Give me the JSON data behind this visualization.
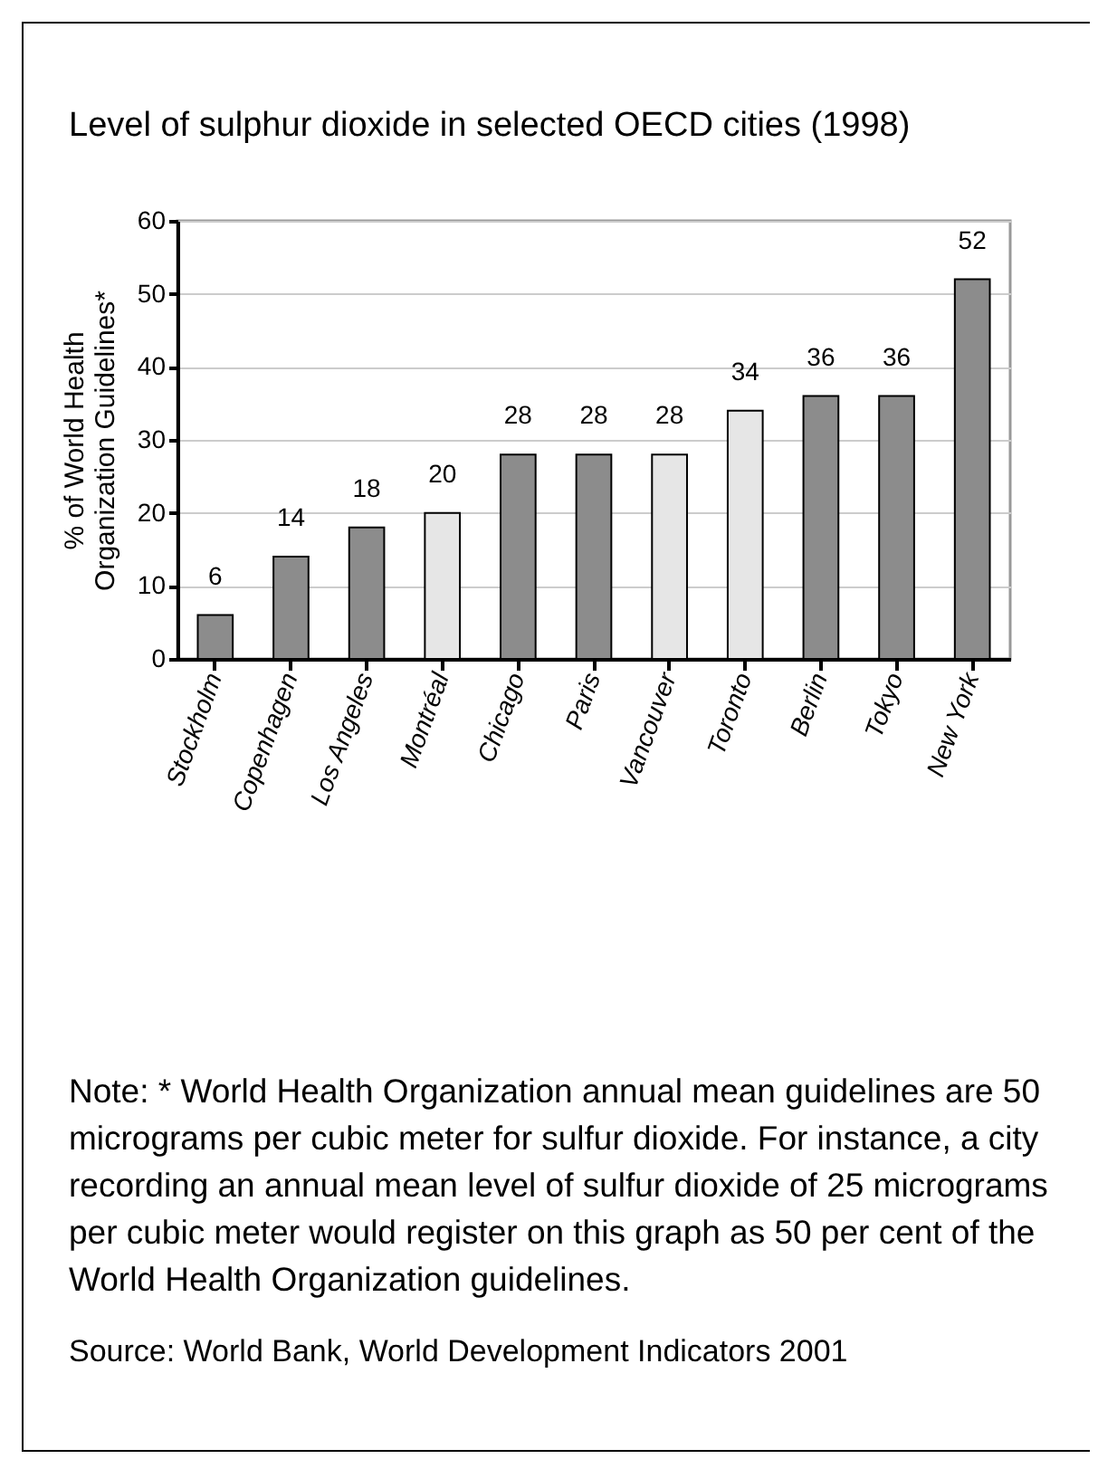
{
  "chart_data": {
    "type": "bar",
    "title": "Level of sulphur dioxide in selected OECD cities (1998)",
    "ylabel": "% of World Health Organization Guidelines*",
    "categories": [
      "Stockholm",
      "Copenhagen",
      "Los Angeles",
      "Montréal",
      "Chicago",
      "Paris",
      "Vancouver",
      "Toronto",
      "Berlin",
      "Tokyo",
      "New York"
    ],
    "values": [
      6,
      14,
      18,
      20,
      28,
      28,
      28,
      34,
      36,
      36,
      52
    ],
    "colors": [
      "#8c8c8c",
      "#8c8c8c",
      "#8c8c8c",
      "#e6e6e6",
      "#8c8c8c",
      "#8c8c8c",
      "#e6e6e6",
      "#e6e6e6",
      "#8c8c8c",
      "#8c8c8c",
      "#8c8c8c"
    ],
    "ylim": [
      0,
      60
    ],
    "yticks": [
      0,
      10,
      20,
      30,
      40,
      50,
      60
    ],
    "grid": "y",
    "data_labels": true,
    "annotations": [
      "Note: * World Health Organization annual mean guidelines are 50 micrograms per cubic meter for sulfur dioxide. For instance, a city recording an annual mean level of sulfur dioxide of 25 micrograms per cubic meter would register on this graph as 50 per cent of the World Health Organization guidelines.",
      "Source: World Bank, World Development Indicators 2001"
    ]
  }
}
